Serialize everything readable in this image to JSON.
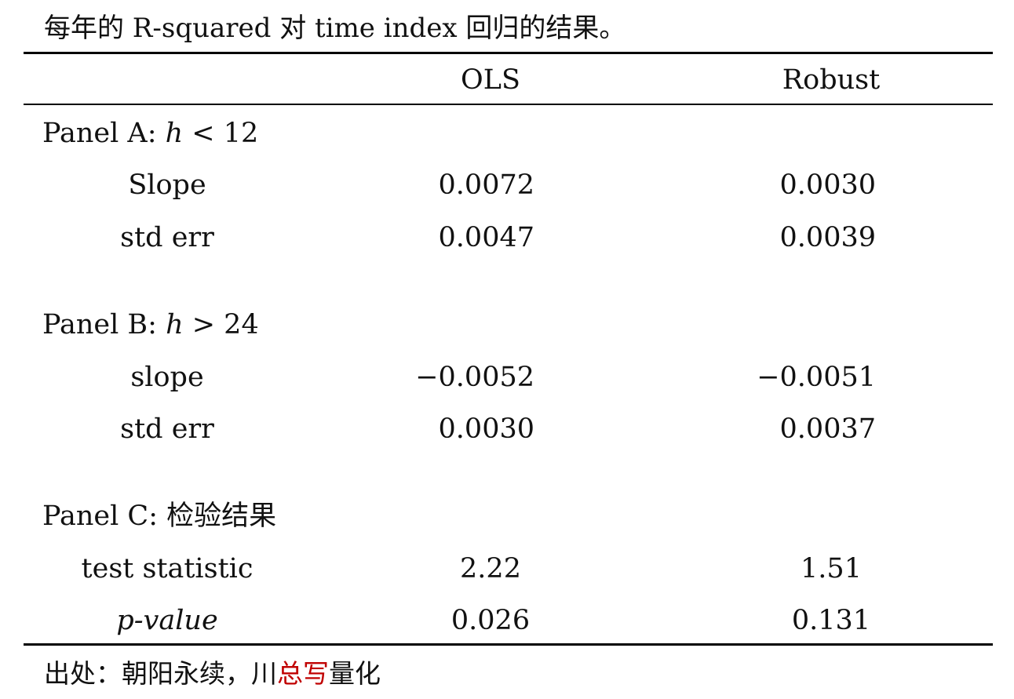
{
  "caption": "每年的 R-squared 对 time index 回归的结果。",
  "header": {
    "col_ols": "OLS",
    "col_robust": "Robust"
  },
  "panel_a": {
    "prefix": "Panel A: ",
    "var": "h",
    "cond": " < 12",
    "rows": [
      {
        "label": "Slope",
        "ols": "0.0072",
        "robust": "0.0030"
      },
      {
        "label": "std err",
        "ols": "0.0047",
        "robust": "0.0039"
      }
    ]
  },
  "panel_b": {
    "prefix": "Panel B: ",
    "var": "h",
    "cond": " > 24",
    "rows": [
      {
        "label": "slope",
        "ols": "−0.0052",
        "robust": "−0.0051"
      },
      {
        "label": "std err",
        "ols": "0.0030",
        "robust": "0.0037"
      }
    ]
  },
  "panel_c": {
    "title": "Panel C: 检验结果",
    "rows": [
      {
        "label": "test statistic",
        "ols": "2.22",
        "robust": "1.51"
      },
      {
        "label": "p-value",
        "ols": "0.026",
        "robust": "0.131"
      }
    ]
  },
  "source": {
    "prefix": "出处：朝阳永续，川",
    "highlight": "总写",
    "suffix": "量化",
    "highlight_color": "#c00000"
  }
}
